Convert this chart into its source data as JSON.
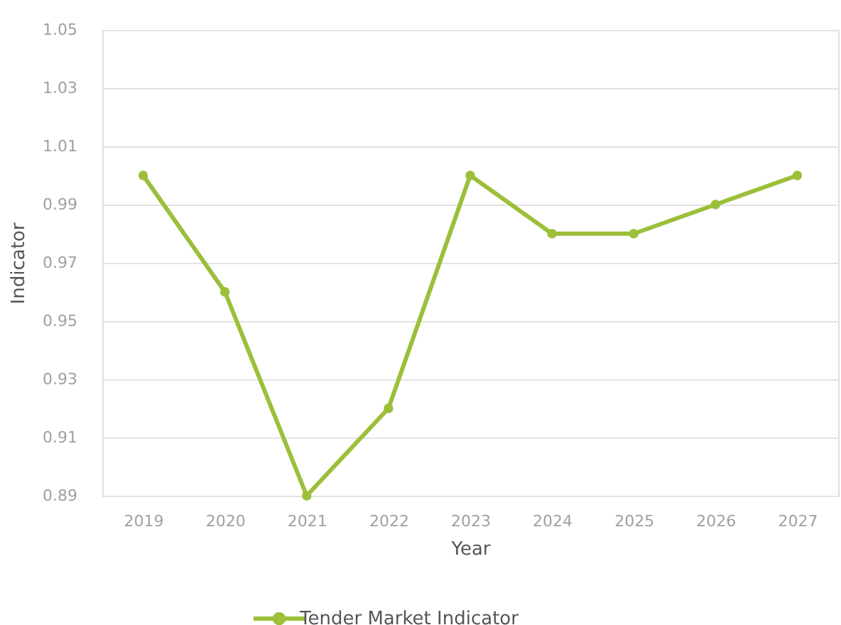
{
  "chart_data": {
    "type": "line",
    "xlabel": "Year",
    "ylabel": "Indicator",
    "categories": [
      "2019",
      "2020",
      "2021",
      "2022",
      "2023",
      "2024",
      "2025",
      "2026",
      "2027"
    ],
    "series": [
      {
        "name": "Tender Market Indicator",
        "color": "#9cbf3a",
        "values": [
          1.0,
          0.96,
          0.89,
          0.92,
          1.0,
          0.98,
          0.98,
          0.99,
          1.0
        ]
      }
    ],
    "ylim": [
      0.89,
      1.05
    ],
    "yticks": [
      0.89,
      0.91,
      0.93,
      0.95,
      0.97,
      0.99,
      1.01,
      1.03,
      1.05
    ],
    "grid": "y",
    "legend": "bottom",
    "marker": "circle",
    "line_style": "solid"
  }
}
